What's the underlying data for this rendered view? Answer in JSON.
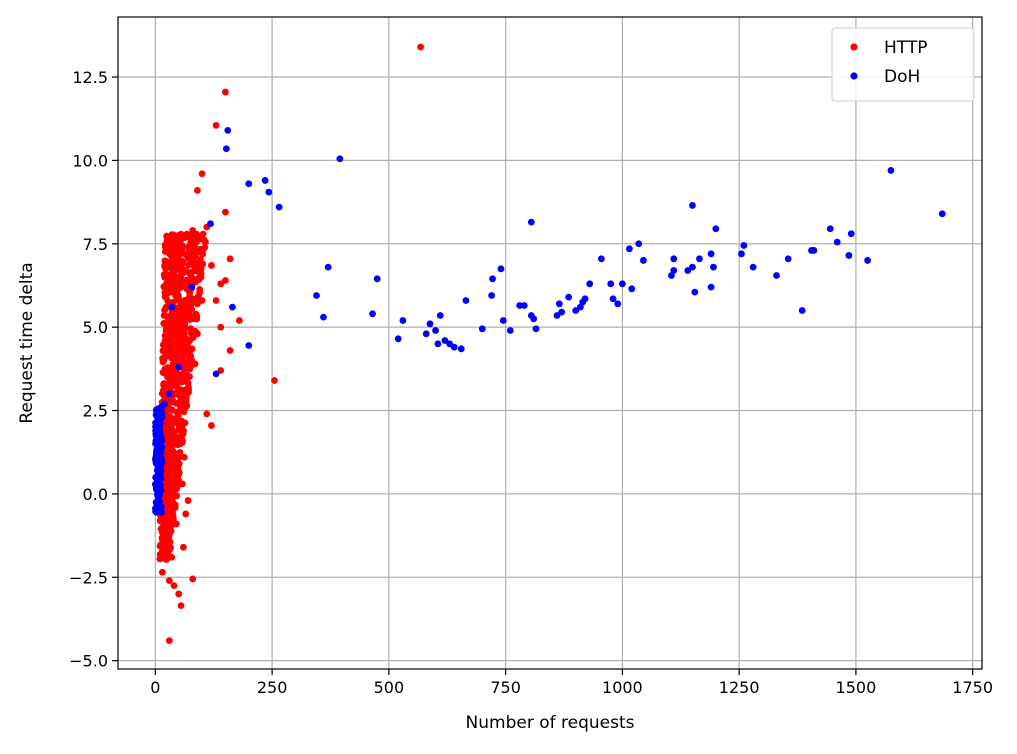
{
  "chart_data": {
    "type": "scatter",
    "title": "",
    "xlabel": "Number of requests",
    "ylabel": "Request time delta",
    "xlim": [
      -80,
      1770
    ],
    "ylim": [
      -5.25,
      14.3
    ],
    "x_ticks": [
      0,
      250,
      500,
      750,
      1000,
      1250,
      1500,
      1750
    ],
    "y_ticks": [
      -5.0,
      -2.5,
      0.0,
      2.5,
      5.0,
      7.5,
      10.0,
      12.5
    ],
    "x_tick_labels": [
      "0",
      "250",
      "500",
      "750",
      "1000",
      "1250",
      "1500",
      "1750"
    ],
    "y_tick_labels": [
      "−5.0",
      "−2.5",
      "0.0",
      "2.5",
      "5.0",
      "7.5",
      "10.0",
      "12.5"
    ],
    "grid": true,
    "legend": "top-right",
    "series": [
      {
        "name": "HTTP",
        "color": "#ff0000",
        "cluster": {
          "count": 900,
          "x_range": [
            0,
            110
          ],
          "y_range": [
            -2.0,
            7.8
          ]
        },
        "points": [
          [
            568,
            13.4
          ],
          [
            150,
            12.05
          ],
          [
            130,
            11.05
          ],
          [
            100,
            9.6
          ],
          [
            90,
            9.1
          ],
          [
            150,
            8.45
          ],
          [
            110,
            8.0
          ],
          [
            80,
            7.9
          ],
          [
            160,
            7.05
          ],
          [
            140,
            6.3
          ],
          [
            180,
            5.2
          ],
          [
            160,
            4.3
          ],
          [
            255,
            3.4
          ],
          [
            140,
            3.7
          ],
          [
            120,
            2.05
          ],
          [
            110,
            2.4
          ],
          [
            150,
            6.4
          ],
          [
            120,
            6.85
          ],
          [
            140,
            5.0
          ],
          [
            130,
            5.8
          ],
          [
            100,
            5.8
          ],
          [
            90,
            4.8
          ],
          [
            85,
            3.9
          ],
          [
            80,
            -2.55
          ],
          [
            40,
            -2.75
          ],
          [
            50,
            -3.0
          ],
          [
            55,
            -3.35
          ],
          [
            30,
            -4.4
          ],
          [
            15,
            -2.35
          ],
          [
            30,
            -2.6
          ],
          [
            60,
            -1.6
          ],
          [
            65,
            -0.6
          ],
          [
            70,
            -0.2
          ],
          [
            20,
            -1.5
          ],
          [
            35,
            -1.9
          ],
          [
            45,
            -0.9
          ],
          [
            58,
            0.3
          ],
          [
            62,
            1.1
          ]
        ]
      },
      {
        "name": "DoH",
        "color": "#0000ff",
        "cluster": {
          "count": 160,
          "x_range": [
            0,
            14
          ],
          "y_range": [
            -0.6,
            2.6
          ]
        },
        "points": [
          [
            155,
            10.9
          ],
          [
            152,
            10.35
          ],
          [
            395,
            10.05
          ],
          [
            200,
            9.3
          ],
          [
            235,
            9.4
          ],
          [
            243,
            9.05
          ],
          [
            265,
            8.6
          ],
          [
            118,
            8.1
          ],
          [
            78,
            6.2
          ],
          [
            165,
            5.6
          ],
          [
            35,
            5.6
          ],
          [
            200,
            4.45
          ],
          [
            130,
            3.6
          ],
          [
            50,
            3.8
          ],
          [
            30,
            3.0
          ],
          [
            20,
            2.7
          ],
          [
            370,
            6.8
          ],
          [
            345,
            5.95
          ],
          [
            360,
            5.3
          ],
          [
            465,
            5.4
          ],
          [
            475,
            6.45
          ],
          [
            520,
            4.65
          ],
          [
            530,
            5.2
          ],
          [
            580,
            4.8
          ],
          [
            588,
            5.1
          ],
          [
            600,
            4.9
          ],
          [
            605,
            4.5
          ],
          [
            610,
            5.35
          ],
          [
            620,
            4.6
          ],
          [
            630,
            4.5
          ],
          [
            640,
            4.4
          ],
          [
            655,
            4.35
          ],
          [
            665,
            5.8
          ],
          [
            700,
            4.95
          ],
          [
            720,
            5.95
          ],
          [
            722,
            6.45
          ],
          [
            740,
            6.75
          ],
          [
            745,
            5.2
          ],
          [
            760,
            4.9
          ],
          [
            780,
            5.65
          ],
          [
            790,
            5.65
          ],
          [
            805,
            8.15
          ],
          [
            805,
            5.35
          ],
          [
            810,
            5.25
          ],
          [
            815,
            4.95
          ],
          [
            860,
            5.35
          ],
          [
            865,
            5.7
          ],
          [
            870,
            5.45
          ],
          [
            885,
            5.9
          ],
          [
            900,
            5.5
          ],
          [
            910,
            5.6
          ],
          [
            915,
            5.75
          ],
          [
            920,
            5.85
          ],
          [
            930,
            6.3
          ],
          [
            955,
            7.05
          ],
          [
            975,
            6.3
          ],
          [
            980,
            5.85
          ],
          [
            990,
            5.7
          ],
          [
            1000,
            6.3
          ],
          [
            1015,
            7.35
          ],
          [
            1020,
            6.15
          ],
          [
            1035,
            7.5
          ],
          [
            1045,
            7.0
          ],
          [
            1105,
            6.55
          ],
          [
            1110,
            7.05
          ],
          [
            1110,
            6.7
          ],
          [
            1140,
            6.7
          ],
          [
            1150,
            6.8
          ],
          [
            1150,
            8.65
          ],
          [
            1155,
            6.05
          ],
          [
            1165,
            7.05
          ],
          [
            1190,
            7.2
          ],
          [
            1190,
            6.2
          ],
          [
            1195,
            6.8
          ],
          [
            1200,
            7.95
          ],
          [
            1255,
            7.2
          ],
          [
            1260,
            7.45
          ],
          [
            1280,
            6.8
          ],
          [
            1330,
            6.55
          ],
          [
            1355,
            7.05
          ],
          [
            1385,
            5.5
          ],
          [
            1405,
            7.3
          ],
          [
            1410,
            7.3
          ],
          [
            1445,
            7.95
          ],
          [
            1460,
            7.55
          ],
          [
            1485,
            7.15
          ],
          [
            1490,
            7.8
          ],
          [
            1525,
            7.0
          ],
          [
            1575,
            9.7
          ],
          [
            1685,
            8.4
          ]
        ]
      }
    ]
  }
}
